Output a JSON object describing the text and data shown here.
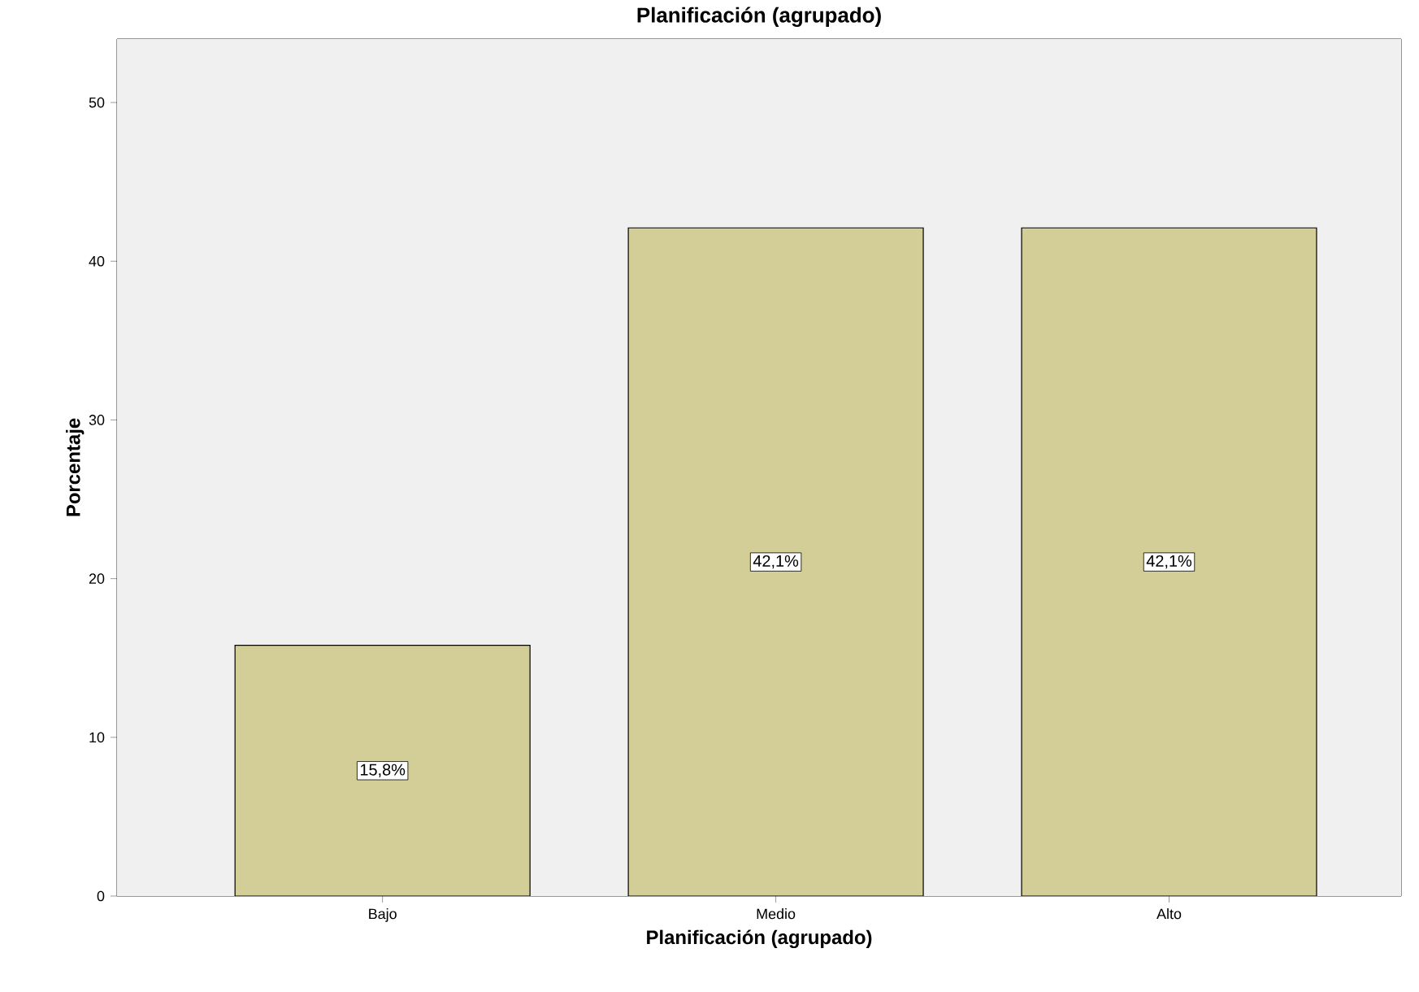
{
  "chart_data": {
    "type": "bar",
    "title": "Planificación (agrupado)",
    "xlabel": "Planificación (agrupado)",
    "ylabel": "Porcentaje",
    "categories": [
      "Bajo",
      "Medio",
      "Alto"
    ],
    "values": [
      15.8,
      42.1,
      42.1
    ],
    "value_labels": [
      "15,8%",
      "42,1%",
      "42,1%"
    ],
    "color": "#d3ce97",
    "ylim": [
      0,
      54
    ],
    "yticks": [
      0,
      10,
      20,
      30,
      40,
      50
    ]
  }
}
